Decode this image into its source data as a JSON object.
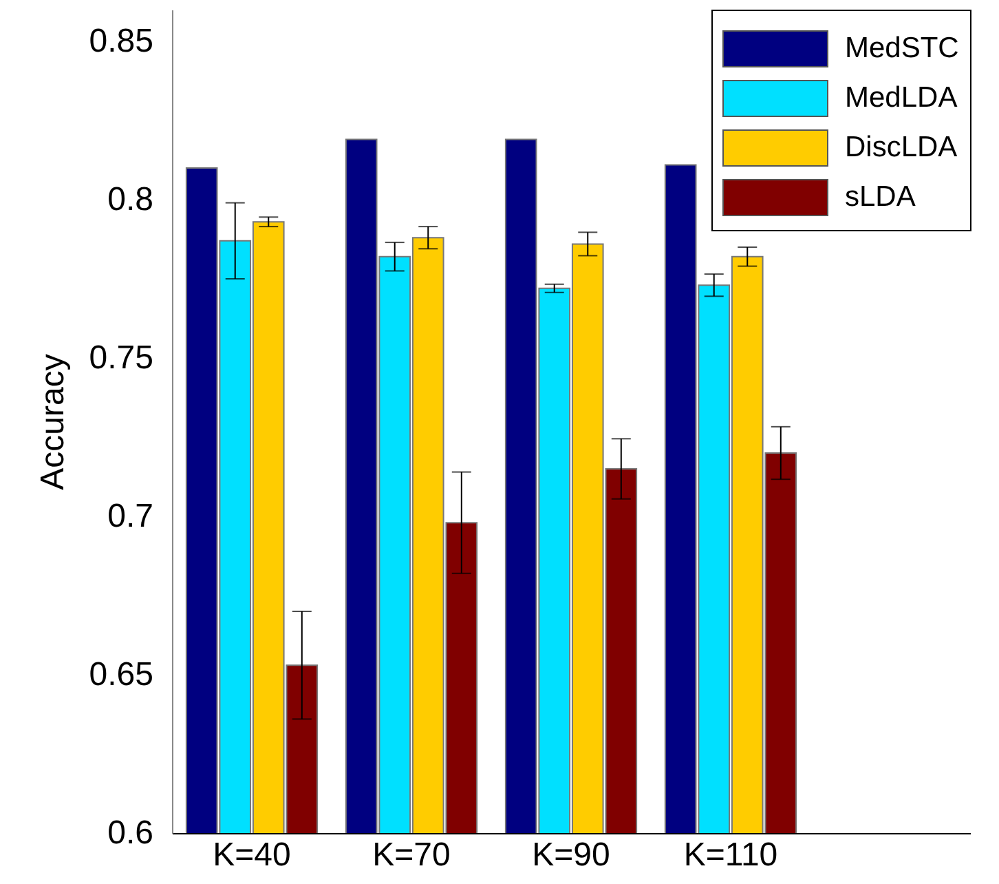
{
  "chart_data": {
    "type": "bar",
    "ylabel": "Accuracy",
    "categories": [
      "K=40",
      "K=70",
      "K=90",
      "K=110",
      null
    ],
    "series": [
      {
        "name": "MedSTC",
        "color": "#000080",
        "values": [
          0.81,
          0.819,
          0.819,
          0.811,
          null
        ]
      },
      {
        "name": "MedLDA",
        "color": "#00e0ff",
        "values": [
          0.787,
          0.782,
          0.772,
          0.773,
          null
        ],
        "errors": [
          0.012,
          0.0045,
          0.0013,
          0.0035,
          null
        ]
      },
      {
        "name": "DiscLDA",
        "color": "#ffcc00",
        "values": [
          0.793,
          0.788,
          0.786,
          0.782,
          null
        ],
        "errors": [
          0.0015,
          0.0035,
          0.0037,
          0.003,
          null
        ]
      },
      {
        "name": "sLDA",
        "color": "#800000",
        "values": [
          0.653,
          0.698,
          0.715,
          0.72,
          null
        ],
        "errors": [
          0.017,
          0.016,
          0.0095,
          0.0083,
          null
        ]
      }
    ],
    "ylim": [
      0.6,
      0.86
    ],
    "yticks": [
      0.6,
      0.65,
      0.7,
      0.75,
      0.8,
      0.85
    ],
    "grid": false,
    "legend": "top right"
  }
}
